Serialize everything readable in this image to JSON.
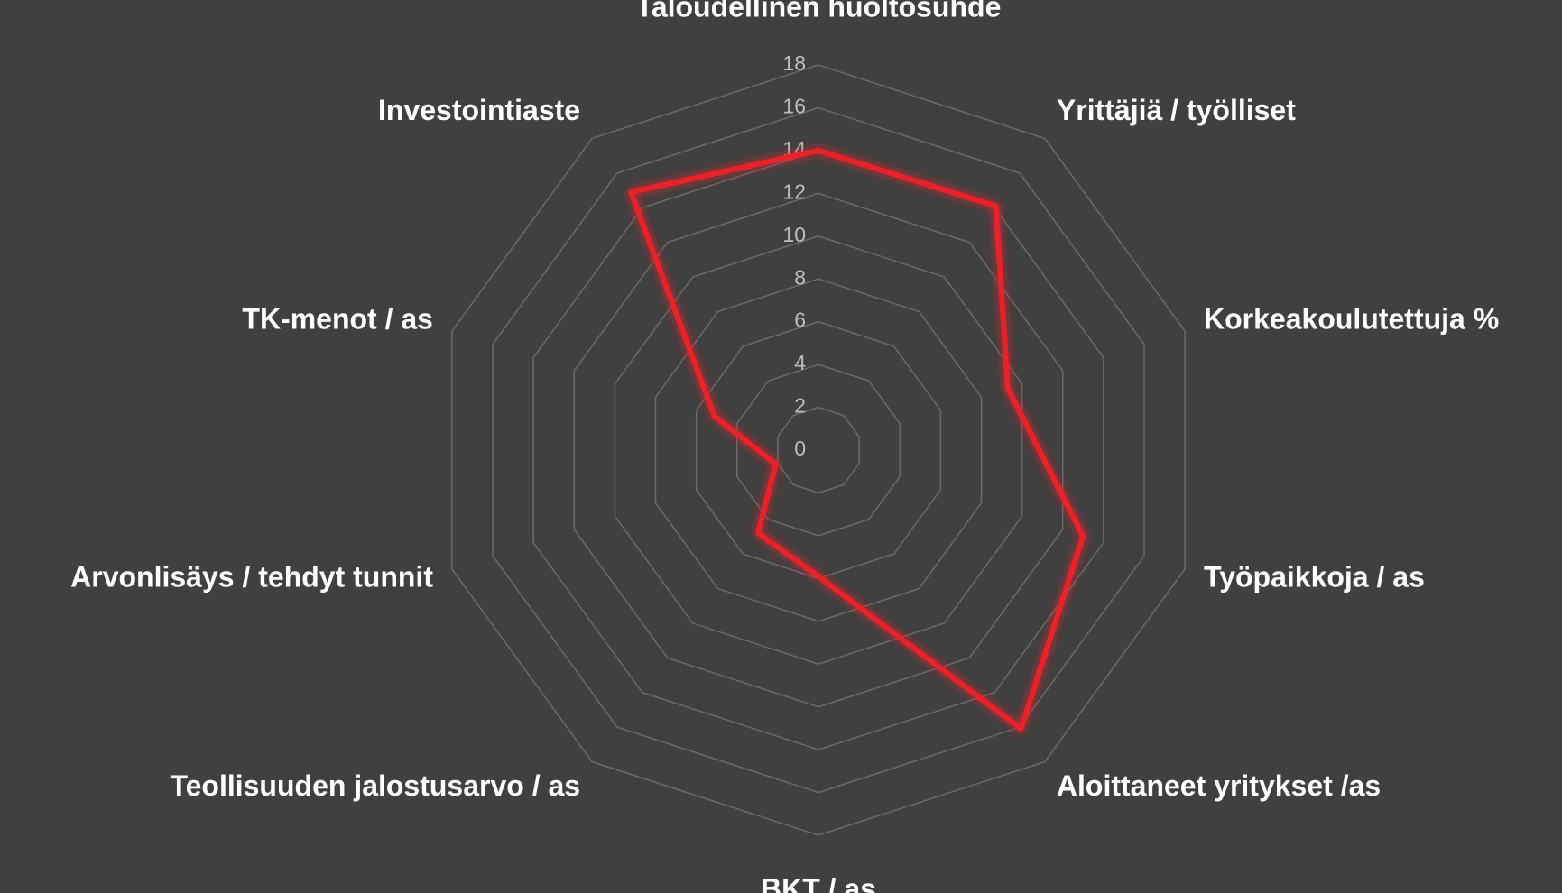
{
  "chart_data": {
    "type": "radar",
    "categories": [
      "Taloudellinen huoltosuhde",
      "Yrittäjiä / työlliset",
      "Korkeakoulutettuja %",
      "Työpaikkoja / as",
      "Aloittaneet yritykset /as",
      "BKT / as",
      "Teollisuuden jalostusarvo / as",
      "Arvonlisäys / tehdyt tunnit",
      "TK-menot / as",
      "Investointiaste"
    ],
    "values": [
      14,
      14.1,
      9.3,
      13,
      16.1,
      5.9,
      4.8,
      2.1,
      5.1,
      14.9
    ],
    "color": "#e8202a",
    "ylim": [
      0,
      18
    ],
    "yticks": [
      0,
      2,
      4,
      6,
      8,
      10,
      12,
      14,
      16,
      18
    ],
    "grid": true
  }
}
